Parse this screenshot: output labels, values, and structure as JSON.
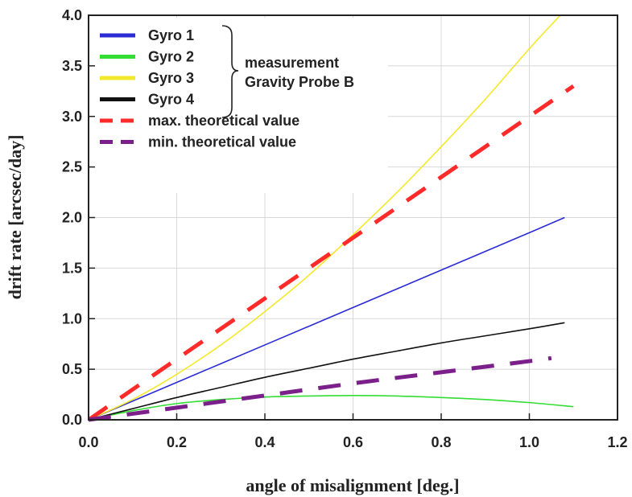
{
  "chart_data": {
    "type": "line",
    "xlabel": "angle of misalignment [deg.]",
    "ylabel": "drift rate [arcsec/day]",
    "xlim": [
      0.0,
      1.2
    ],
    "ylim": [
      0.0,
      4.0
    ],
    "xticks": [
      "0.0",
      "0.2",
      "0.4",
      "0.6",
      "0.8",
      "1.0",
      "1.2"
    ],
    "yticks": [
      "0.0",
      "0.5",
      "1.0",
      "1.5",
      "2.0",
      "2.5",
      "3.0",
      "3.5",
      "4.0"
    ],
    "grid": true,
    "legend_position": "top-left",
    "legend_group_label": [
      "measurement",
      "Gravity Probe B"
    ],
    "series": [
      {
        "name": "Gyro 1",
        "color": "#2b2bd6",
        "style": "solid",
        "x": [
          0.0,
          0.2,
          0.4,
          0.6,
          0.8,
          1.0,
          1.08
        ],
        "y": [
          0.0,
          0.37,
          0.74,
          1.11,
          1.48,
          1.85,
          2.0
        ]
      },
      {
        "name": "Gyro 2",
        "color": "#33dd33",
        "style": "solid",
        "x": [
          0.0,
          0.1,
          0.2,
          0.3,
          0.4,
          0.5,
          0.6,
          0.7,
          0.8,
          0.9,
          1.0,
          1.1
        ],
        "y": [
          0.0,
          0.09,
          0.16,
          0.2,
          0.225,
          0.235,
          0.24,
          0.235,
          0.22,
          0.2,
          0.17,
          0.13
        ]
      },
      {
        "name": "Gyro 3",
        "color": "#f4e82a",
        "style": "solid",
        "x": [
          0.0,
          0.1,
          0.2,
          0.3,
          0.4,
          0.5,
          0.6,
          0.7,
          0.8,
          0.9,
          1.0,
          1.07
        ],
        "y": [
          0.0,
          0.2,
          0.45,
          0.74,
          1.07,
          1.43,
          1.83,
          2.25,
          2.7,
          3.17,
          3.67,
          4.0
        ]
      },
      {
        "name": "Gyro 4",
        "color": "#111111",
        "style": "solid",
        "x": [
          0.0,
          0.1,
          0.2,
          0.3,
          0.4,
          0.5,
          0.6,
          0.7,
          0.8,
          0.9,
          1.0,
          1.08
        ],
        "y": [
          0.0,
          0.11,
          0.22,
          0.32,
          0.42,
          0.51,
          0.6,
          0.68,
          0.76,
          0.83,
          0.9,
          0.96
        ]
      },
      {
        "name": "max. theoretical value",
        "color": "#ff2a2a",
        "style": "dashed",
        "x": [
          0.0,
          1.1
        ],
        "y": [
          0.0,
          3.3
        ]
      },
      {
        "name": "min.  theoretical value",
        "color": "#7b1f8a",
        "style": "dashed",
        "x": [
          0.0,
          0.2,
          0.4,
          0.6,
          0.8,
          1.0,
          1.05
        ],
        "y": [
          0.0,
          0.12,
          0.24,
          0.36,
          0.47,
          0.58,
          0.61
        ]
      }
    ]
  }
}
